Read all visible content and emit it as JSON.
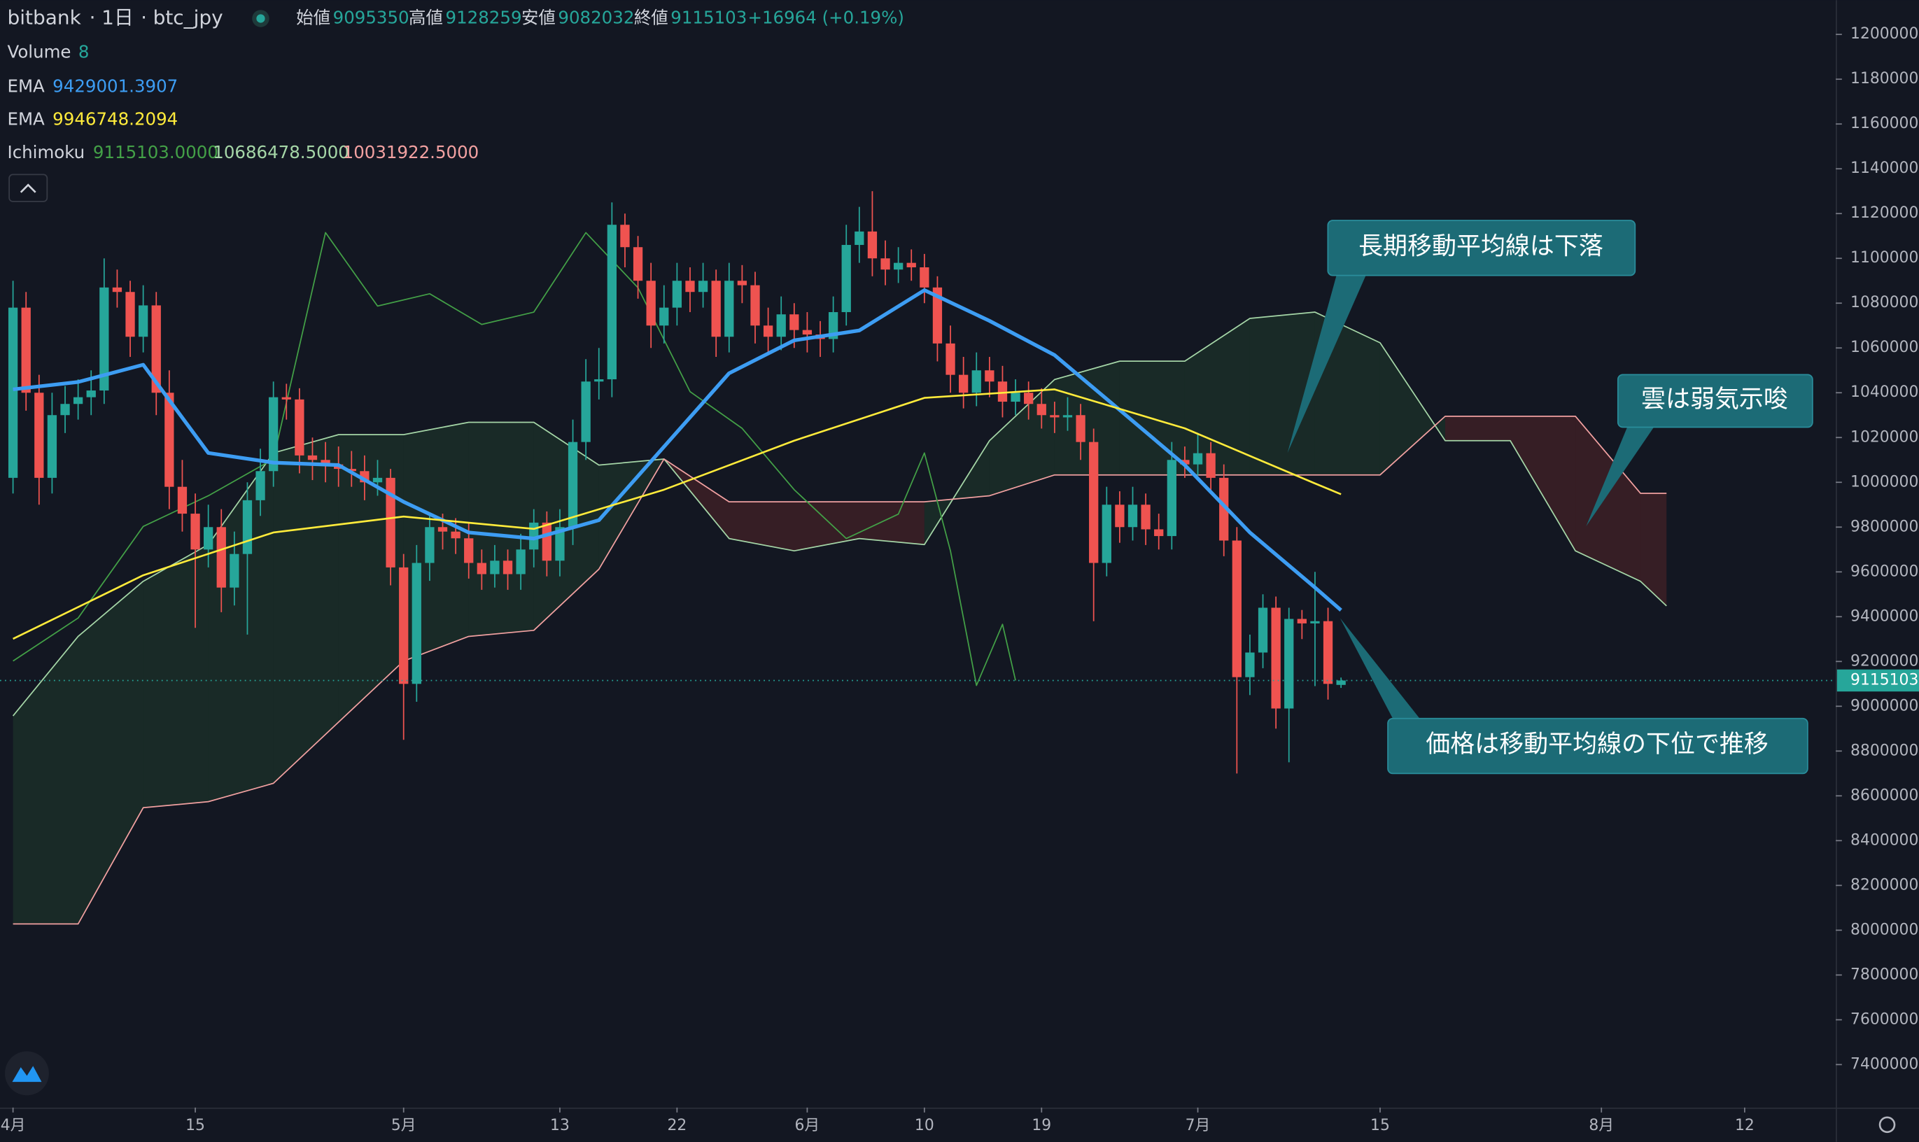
{
  "chart_data": {
    "type": "candlestick",
    "header": {
      "exchange": "bitbank",
      "interval": "1日",
      "symbol": "btc_jpy",
      "labels": [
        "始値",
        "高値",
        "安値",
        "終値"
      ],
      "change": "+16964 (+0.19%)"
    },
    "volume": {
      "name": "Volume",
      "value": 8
    },
    "ichimoku": {
      "name": "Ichimoku",
      "values": [
        "9115103.0000",
        "10686478.5000",
        "10031922.5000"
      ]
    },
    "annotations": [
      "長期移動平均線は下落",
      "雲は弱気示唆",
      "価格は移動平均線の下位で推移"
    ],
    "x": [
      "04-01",
      "04-02",
      "04-03",
      "04-04",
      "04-05",
      "04-06",
      "04-07",
      "04-08",
      "04-09",
      "04-10",
      "04-11",
      "04-12",
      "04-13",
      "04-14",
      "04-15",
      "04-16",
      "04-17",
      "04-18",
      "04-19",
      "04-20",
      "04-21",
      "04-22",
      "04-23",
      "04-24",
      "04-25",
      "04-26",
      "04-27",
      "04-28",
      "04-29",
      "04-30",
      "05-01",
      "05-02",
      "05-03",
      "05-04",
      "05-05",
      "05-06",
      "05-07",
      "05-08",
      "05-09",
      "05-10",
      "05-11",
      "05-12",
      "05-13",
      "05-14",
      "05-15",
      "05-16",
      "05-17",
      "05-18",
      "05-19",
      "05-20",
      "05-21",
      "05-22",
      "05-23",
      "05-24",
      "05-25",
      "05-26",
      "05-27",
      "05-28",
      "05-29",
      "05-30",
      "05-31",
      "06-01",
      "06-02",
      "06-03",
      "06-04",
      "06-05",
      "06-06",
      "06-07",
      "06-08",
      "06-09",
      "06-10",
      "06-11",
      "06-12",
      "06-13",
      "06-14",
      "06-15",
      "06-16",
      "06-17",
      "06-18",
      "06-19",
      "06-20",
      "06-21",
      "06-22",
      "06-23",
      "06-24",
      "06-25",
      "06-26",
      "06-27",
      "06-28",
      "06-29",
      "06-30",
      "07-01",
      "07-02",
      "07-03",
      "07-04",
      "07-05",
      "07-06",
      "07-07",
      "07-08",
      "07-09",
      "07-10",
      "07-11",
      "07-12"
    ],
    "open": [
      10020000,
      10780000,
      10400000,
      10020000,
      10300000,
      10350000,
      10380000,
      10410000,
      10870000,
      10850000,
      10650000,
      10790000,
      10400000,
      9980000,
      9860000,
      9700000,
      9800000,
      9530000,
      9680000,
      9920000,
      10050000,
      10380000,
      10370000,
      10120000,
      10100000,
      10080000,
      10060000,
      10050000,
      10000000,
      10020000,
      9620000,
      9100000,
      9640000,
      9800000,
      9780000,
      9750000,
      9640000,
      9590000,
      9650000,
      9590000,
      9700000,
      9820000,
      9650000,
      9800000,
      10180000,
      10450000,
      10460000,
      11150000,
      11050000,
      10900000,
      10700000,
      10780000,
      10900000,
      10850000,
      10900000,
      10650000,
      10900000,
      10880000,
      10700000,
      10650000,
      10750000,
      10680000,
      10660000,
      10640000,
      10760000,
      11060000,
      11120000,
      11000000,
      10950000,
      10980000,
      10960000,
      10870000,
      10620000,
      10480000,
      10400000,
      10500000,
      10450000,
      10360000,
      10400000,
      10350000,
      10300000,
      10290000,
      10300000,
      10180000,
      9640000,
      9900000,
      9800000,
      9900000,
      9790000,
      9760000,
      10100000,
      10080000,
      10130000,
      10020000,
      9740000,
      9130000,
      9240000,
      9440000,
      8990000,
      9390000,
      9370000,
      9380000,
      9095350
    ],
    "high": [
      10900000,
      10850000,
      10480000,
      10400000,
      10430000,
      10460000,
      10500000,
      11000000,
      10950000,
      10900000,
      10880000,
      10850000,
      10500000,
      10100000,
      9950000,
      9900000,
      9880000,
      9780000,
      10000000,
      10150000,
      10450000,
      10440000,
      10420000,
      10200000,
      10180000,
      10160000,
      10140000,
      10120000,
      10100000,
      10060000,
      9680000,
      9720000,
      9850000,
      9860000,
      9840000,
      9820000,
      9700000,
      9720000,
      9700000,
      9770000,
      9880000,
      9870000,
      9880000,
      10280000,
      10550000,
      10600000,
      11250000,
      11200000,
      11100000,
      10980000,
      10880000,
      10980000,
      10960000,
      10980000,
      10950000,
      10980000,
      10970000,
      10940000,
      10780000,
      10830000,
      10800000,
      10760000,
      10720000,
      10830000,
      11150000,
      11230000,
      11300000,
      11080000,
      11050000,
      11040000,
      11020000,
      10920000,
      10700000,
      10560000,
      10580000,
      10560000,
      10520000,
      10460000,
      10450000,
      10420000,
      10360000,
      10380000,
      10350000,
      10240000,
      9980000,
      9960000,
      9980000,
      9950000,
      9860000,
      10180000,
      10160000,
      10220000,
      10180000,
      10080000,
      9800000,
      9320000,
      9500000,
      9490000,
      9440000,
      9430000,
      9600000,
      9440000,
      9128259
    ],
    "low": [
      9950000,
      10320000,
      9900000,
      9950000,
      10220000,
      10280000,
      10300000,
      10350000,
      10780000,
      10560000,
      10580000,
      10300000,
      9880000,
      9780000,
      9350000,
      9620000,
      9420000,
      9450000,
      9320000,
      9850000,
      9980000,
      10280000,
      10040000,
      10010000,
      10000000,
      9980000,
      9980000,
      9920000,
      9940000,
      9540000,
      8850000,
      9020000,
      9560000,
      9700000,
      9680000,
      9570000,
      9520000,
      9530000,
      9520000,
      9520000,
      9620000,
      9580000,
      9580000,
      9720000,
      10100000,
      10370000,
      10380000,
      10960000,
      10820000,
      10600000,
      10620000,
      10700000,
      10760000,
      10780000,
      10560000,
      10580000,
      10800000,
      10620000,
      10580000,
      10590000,
      10600000,
      10580000,
      10560000,
      10580000,
      10700000,
      10980000,
      10920000,
      10880000,
      10890000,
      10900000,
      10800000,
      10540000,
      10400000,
      10330000,
      10340000,
      10380000,
      10290000,
      10300000,
      10280000,
      10240000,
      10220000,
      10230000,
      10100000,
      9380000,
      9580000,
      9730000,
      9740000,
      9720000,
      9700000,
      9700000,
      10020000,
      10030000,
      9960000,
      9670000,
      8700000,
      9050000,
      9170000,
      8900000,
      8750000,
      9300000,
      9090000,
      9030000,
      9082032
    ],
    "close": [
      10780000,
      10400000,
      10020000,
      10300000,
      10350000,
      10380000,
      10410000,
      10870000,
      10850000,
      10650000,
      10790000,
      10400000,
      9980000,
      9860000,
      9700000,
      9800000,
      9530000,
      9680000,
      9920000,
      10050000,
      10380000,
      10370000,
      10120000,
      10100000,
      10080000,
      10060000,
      10050000,
      10000000,
      10020000,
      9620000,
      9100000,
      9640000,
      9800000,
      9780000,
      9750000,
      9640000,
      9590000,
      9650000,
      9590000,
      9700000,
      9820000,
      9650000,
      9800000,
      10180000,
      10450000,
      10460000,
      11150000,
      11050000,
      10900000,
      10700000,
      10780000,
      10900000,
      10850000,
      10900000,
      10650000,
      10900000,
      10880000,
      10700000,
      10650000,
      10750000,
      10680000,
      10660000,
      10640000,
      10760000,
      11060000,
      11120000,
      11000000,
      10950000,
      10980000,
      10960000,
      10870000,
      10620000,
      10480000,
      10400000,
      10500000,
      10450000,
      10360000,
      10400000,
      10350000,
      10300000,
      10290000,
      10300000,
      10180000,
      9640000,
      9900000,
      9800000,
      9900000,
      9790000,
      9760000,
      10100000,
      10080000,
      10130000,
      10020000,
      9740000,
      9130000,
      9240000,
      9440000,
      8990000,
      9390000,
      9370000,
      9380000,
      9100000,
      9115103
    ],
    "up_color": "#26a69a",
    "down_color": "#ef5350",
    "series": [
      {
        "name": "EMA",
        "color": "#3d9df3",
        "x": [
          "04-01",
          "04-06",
          "04-11",
          "04-16",
          "04-21",
          "04-26",
          "05-01",
          "05-06",
          "05-11",
          "05-16",
          "05-21",
          "05-26",
          "05-31",
          "06-05",
          "06-10",
          "06-15",
          "06-20",
          "06-25",
          "06-30",
          "07-05",
          "07-10",
          "07-12"
        ],
        "values": [
          10415000,
          10448000,
          10525000,
          10131000,
          10088000,
          10077000,
          9913000,
          9776000,
          9749000,
          9831000,
          10159000,
          10487000,
          10634000,
          10678000,
          10858000,
          10721000,
          10568000,
          10323000,
          10077000,
          9776000,
          9530000,
          9429001.3907
        ]
      },
      {
        "name": "EMA",
        "color": "#ffeb3b",
        "x": [
          "04-01",
          "04-11",
          "04-21",
          "05-01",
          "05-11",
          "05-21",
          "05-31",
          "06-10",
          "06-20",
          "06-30",
          "07-10",
          "07-12"
        ],
        "values": [
          9301000,
          9585000,
          9776000,
          9847000,
          9792000,
          9967000,
          10186000,
          10377000,
          10415000,
          10241000,
          9995000,
          9946748.2094
        ]
      }
    ],
    "lagging_span": {
      "color": "#43a047",
      "x": [
        "04-01",
        "04-06",
        "04-11",
        "04-16",
        "04-21",
        "04-25",
        "04-29",
        "05-03",
        "05-07",
        "05-11",
        "05-15",
        "05-19",
        "05-23",
        "05-27",
        "05-31",
        "06-04",
        "06-08",
        "06-10",
        "06-12",
        "06-14",
        "06-16",
        "06-17"
      ],
      "values": [
        9202000,
        9394000,
        9803000,
        9940000,
        10104000,
        11115000,
        10787000,
        10842000,
        10705000,
        10760000,
        11115000,
        10869000,
        10405000,
        10241000,
        9967000,
        9749000,
        9858000,
        10131000,
        9694000,
        9093000,
        9366000,
        9115103
      ]
    },
    "cloud": {
      "x": [
        "04-01",
        "04-06",
        "04-11",
        "04-16",
        "04-21",
        "04-26",
        "05-01",
        "05-06",
        "05-11",
        "05-16",
        "05-21",
        "05-26",
        "05-31",
        "06-05",
        "06-10",
        "06-15",
        "06-20",
        "06-25",
        "06-30",
        "07-05",
        "07-10",
        "07-15",
        "07-20",
        "07-25",
        "07-30",
        "08-04",
        "08-06"
      ],
      "span_a": [
        8957000,
        9312000,
        9558000,
        9722000,
        10131000,
        10213000,
        10213000,
        10268000,
        10268000,
        10077000,
        10104000,
        9749000,
        9694000,
        9749000,
        9722000,
        10186000,
        10459000,
        10541000,
        10541000,
        10732000,
        10760000,
        10623000,
        10186000,
        10186000,
        9694000,
        9558000,
        9448000
      ],
      "span_b": [
        8028000,
        8028000,
        8547000,
        8574000,
        8656000,
        8929000,
        9202000,
        9312000,
        9339000,
        9612000,
        10104000,
        9913000,
        9913000,
        9913000,
        9913000,
        9940000,
        10033000,
        10033000,
        10033000,
        10033000,
        10033000,
        10033000,
        10295000,
        10295000,
        10295000,
        9951000,
        9951000
      ],
      "span_a_color": "#a5d6a7",
      "span_b_color": "#f2a1a1",
      "bull_fill": "rgba(67,160,71,0.14)",
      "bear_fill": "rgba(244,67,54,0.16)"
    },
    "xlim": [
      "03-31",
      "08-19"
    ],
    "xticks": [
      {
        "value": "04-01",
        "label": "4月"
      },
      {
        "value": "04-15",
        "label": "15"
      },
      {
        "value": "05-01",
        "label": "5月"
      },
      {
        "value": "05-13",
        "label": "13"
      },
      {
        "value": "05-22",
        "label": "22"
      },
      {
        "value": "06-01",
        "label": "6月"
      },
      {
        "value": "06-10",
        "label": "10"
      },
      {
        "value": "06-19",
        "label": "19"
      },
      {
        "value": "07-01",
        "label": "7月"
      },
      {
        "value": "07-15",
        "label": "15"
      },
      {
        "value": "08-01",
        "label": "8月"
      },
      {
        "value": "08-12",
        "label": "12"
      }
    ],
    "ylim": [
      7208000,
      12153000
    ],
    "yticks": [
      7400000,
      7600000,
      7800000,
      8000000,
      8200000,
      8400000,
      8600000,
      8800000,
      9000000,
      9200000,
      9400000,
      9600000,
      9800000,
      10000000,
      10200000,
      10400000,
      10600000,
      10800000,
      11000000,
      11200000,
      11400000,
      11600000,
      11800000,
      12000000
    ],
    "grid": false
  }
}
